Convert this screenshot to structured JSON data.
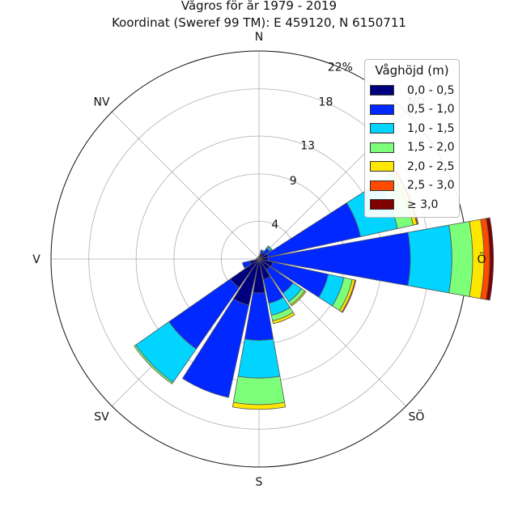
{
  "chart_data": {
    "type": "windrose",
    "title_line1": "Vågros för år 1979 - 2019",
    "title_line2": "Koordinat (Sweref 99 TM): E 459120, N 6150711",
    "directions": [
      "N",
      "NNÖ",
      "NÖ",
      "ÖNÖ",
      "Ö",
      "ÖSÖ",
      "SÖ",
      "SSÖ",
      "S",
      "SSV",
      "SV",
      "VSV",
      "V",
      "VNV",
      "NV",
      "NNV"
    ],
    "compass_labels": [
      "N",
      "NV",
      "V",
      "SV",
      "S",
      "SÖ",
      "Ö",
      "NÖ"
    ],
    "radial_ticks": [
      "4",
      "9",
      "13",
      "18",
      "22%"
    ],
    "rmax_percent": 22,
    "legend_title": "Våghöjd (m)",
    "series": [
      {
        "name": "0,0 - 0,5",
        "color": "#00007f",
        "values": [
          0.3,
          0.6,
          0.8,
          1.0,
          1.0,
          1.5,
          1.4,
          2.2,
          3.6,
          5.0,
          3.7,
          1.0,
          0.3,
          0.2,
          0.2,
          0.2
        ]
      },
      {
        "name": "0,5 - 1,0",
        "color": "#0028ff",
        "values": [
          0.0,
          0.3,
          0.6,
          10.0,
          15.0,
          6.0,
          3.0,
          2.6,
          5.0,
          10.0,
          7.9,
          0.8,
          0.0,
          0.0,
          0.0,
          0.0
        ]
      },
      {
        "name": "1,0 - 1,5",
        "color": "#00d4ff",
        "values": [
          0.0,
          0.1,
          0.2,
          4.0,
          4.4,
          1.7,
          1.1,
          1.3,
          4.0,
          0.0,
          4.3,
          0.0,
          0.0,
          0.0,
          0.0,
          0.0
        ]
      },
      {
        "name": "1,5 - 2,0",
        "color": "#7dff7a",
        "values": [
          0.0,
          0.0,
          0.1,
          1.7,
          2.2,
          0.9,
          0.4,
          0.6,
          2.8,
          0.0,
          0.2,
          0.0,
          0.0,
          0.0,
          0.0,
          0.0
        ]
      },
      {
        "name": "2,0 - 2,5",
        "color": "#ffe600",
        "values": [
          0.0,
          0.0,
          0.0,
          0.4,
          1.2,
          0.3,
          0.15,
          0.3,
          0.5,
          0.0,
          0.0,
          0.0,
          0.0,
          0.0,
          0.0,
          0.0
        ]
      },
      {
        "name": "2,5 - 3,0",
        "color": "#ff4a00",
        "values": [
          0.0,
          0.0,
          0.0,
          0.1,
          0.6,
          0.1,
          0.0,
          0.0,
          0.0,
          0.0,
          0.0,
          0.0,
          0.0,
          0.0,
          0.0,
          0.0
        ]
      },
      {
        "name": "≥ 3,0",
        "color": "#7f0000",
        "values": [
          0.0,
          0.0,
          0.0,
          0.05,
          0.4,
          0.0,
          0.0,
          0.0,
          0.0,
          0.0,
          0.0,
          0.0,
          0.0,
          0.0,
          0.0,
          0.0
        ]
      }
    ]
  }
}
